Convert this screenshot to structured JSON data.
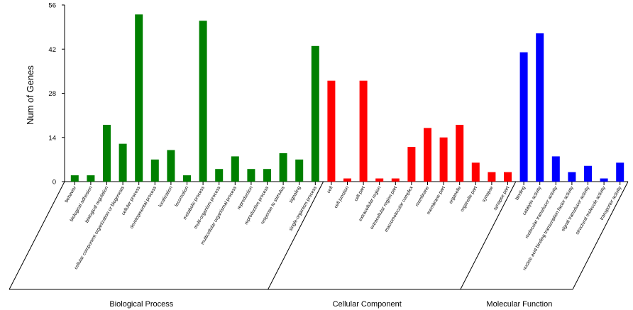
{
  "chart_data": {
    "type": "bar",
    "ylabel": "Num of Genes",
    "ylim": [
      0,
      56
    ],
    "yticks": [
      "0",
      "14",
      "28",
      "42",
      "56"
    ],
    "groups": [
      {
        "name": "Biological Process",
        "color": "#008000",
        "categories": [
          "behavior",
          "biological adhesion",
          "biological regulation",
          "cellular component organization or biogenesis",
          "cellular process",
          "developmental process",
          "localization",
          "locomotion",
          "metabolic process",
          "multi-organism process",
          "multicellular organismal process",
          "reproduction",
          "reproductive process",
          "response to stimulus",
          "signaling",
          "single-organism process"
        ],
        "values": [
          2,
          2,
          18,
          12,
          53,
          7,
          10,
          2,
          51,
          4,
          8,
          4,
          4,
          9,
          7,
          43
        ]
      },
      {
        "name": "Cellular Component",
        "color": "#ff0000",
        "categories": [
          "cell",
          "cell junction",
          "cell part",
          "extracellular region",
          "extracellular region part",
          "macromolecular complex",
          "membrane",
          "membrane part",
          "organelle",
          "organelle part",
          "synapse",
          "synapse part"
        ],
        "values": [
          32,
          1,
          32,
          1,
          1,
          11,
          17,
          14,
          18,
          6,
          3,
          3
        ]
      },
      {
        "name": "Molecular Function",
        "color": "#0000ff",
        "categories": [
          "binding",
          "catalytic activity",
          "molecular transducer activity",
          "nucleic acid binding transcription factor activity",
          "signal transducer activity",
          "structural molecule activity",
          "transporter activity"
        ],
        "values": [
          41,
          47,
          8,
          3,
          5,
          1,
          6
        ]
      }
    ]
  }
}
